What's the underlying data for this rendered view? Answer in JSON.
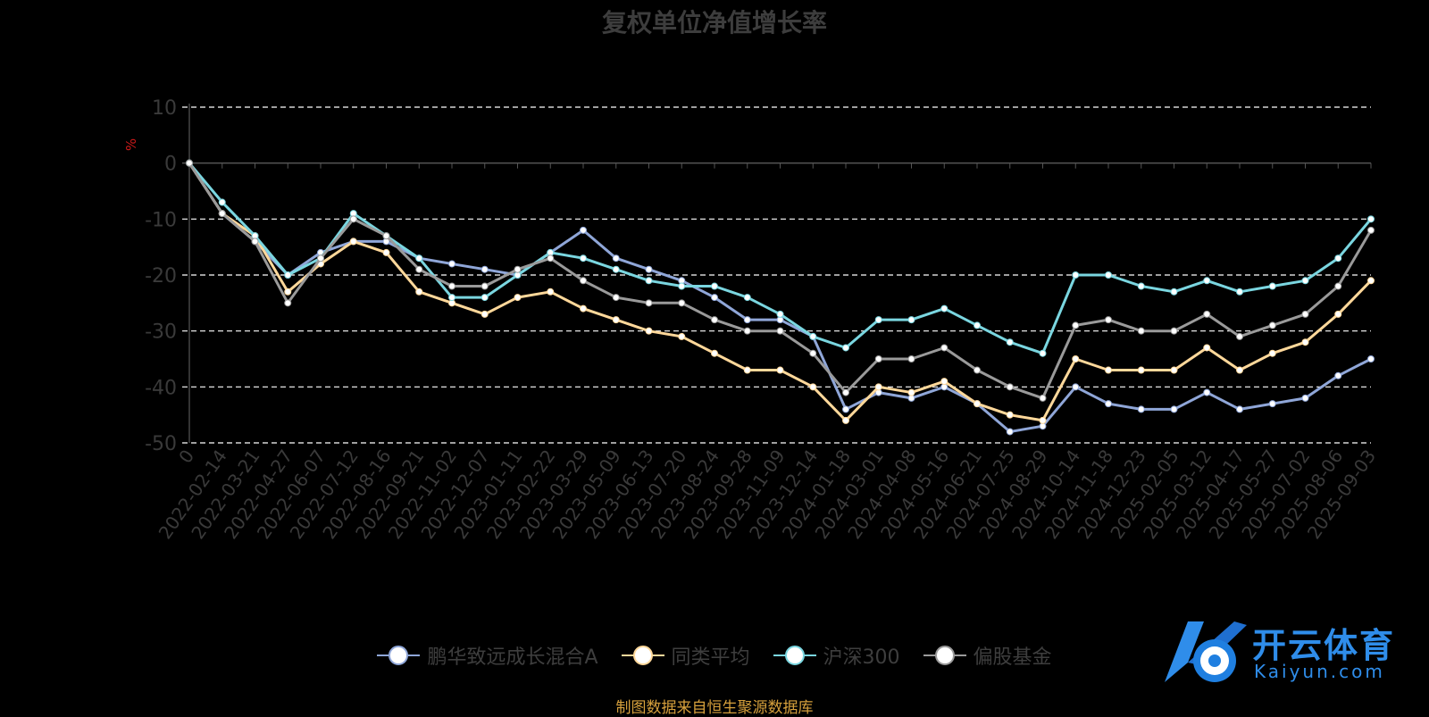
{
  "title": "复权单位净值增长率",
  "source_text": "制图数据来自恒生聚源数据库",
  "watermark": {
    "cn": "开云体育",
    "en": "Kaiyun.com"
  },
  "chart_data": {
    "type": "line",
    "title": "复权单位净值增长率",
    "ylabel": "%",
    "ylim": [
      -50,
      10
    ],
    "yticks": [
      10,
      0,
      -10,
      -20,
      -30,
      -40,
      -50
    ],
    "grid": true,
    "legend_position": "bottom",
    "x_ticks": [
      "0",
      "2022-02-14",
      "2022-03-21",
      "2022-04-27",
      "2022-06-07",
      "2022-07-12",
      "2022-08-16",
      "2022-09-21",
      "2022-11-02",
      "2022-12-07",
      "2023-01-11",
      "2023-02-22",
      "2023-03-29",
      "2023-05-09",
      "2023-06-13",
      "2023-07-20",
      "2023-08-24",
      "2023-09-28",
      "2023-11-09",
      "2023-12-14",
      "2024-01-18",
      "2024-03-01",
      "2024-04-08",
      "2024-05-16",
      "2024-06-21",
      "2024-07-25",
      "2024-08-29",
      "2024-10-14",
      "2024-11-18",
      "2024-12-23",
      "2025-02-05",
      "2025-03-12",
      "2025-04-17",
      "2025-05-27",
      "2025-07-02",
      "2025-08-06",
      "2025-09-03"
    ],
    "series": [
      {
        "name": "鹏华致远成长混合A",
        "color": "#8fa6d8",
        "values": [
          0,
          -9,
          -14,
          -20,
          -16,
          -14,
          -14,
          -17,
          -18,
          -19,
          -20,
          -16,
          -12,
          -17,
          -19,
          -21,
          -24,
          -28,
          -28,
          -31,
          -44,
          -41,
          -42,
          -40,
          -43,
          -48,
          -47,
          -40,
          -43,
          -44,
          -44,
          -41,
          -44,
          -43,
          -42,
          -38,
          -35
        ]
      },
      {
        "name": "同类平均",
        "color": "#ffd89a",
        "values": [
          0,
          -9,
          -13,
          -23,
          -18,
          -14,
          -16,
          -23,
          -25,
          -27,
          -24,
          -23,
          -26,
          -28,
          -30,
          -31,
          -34,
          -37,
          -37,
          -40,
          -46,
          -40,
          -41,
          -39,
          -43,
          -45,
          -46,
          -35,
          -37,
          -37,
          -37,
          -33,
          -37,
          -34,
          -32,
          -27,
          -21
        ]
      },
      {
        "name": "沪深300",
        "color": "#7ad6e0",
        "values": [
          0,
          -7,
          -13,
          -20,
          -17,
          -9,
          -13,
          -17,
          -24,
          -24,
          -20,
          -16,
          -17,
          -19,
          -21,
          -22,
          -22,
          -24,
          -27,
          -31,
          -33,
          -28,
          -28,
          -26,
          -29,
          -32,
          -34,
          -20,
          -20,
          -22,
          -23,
          -21,
          -23,
          -22,
          -21,
          -17,
          -10
        ]
      },
      {
        "name": "偏股基金",
        "color": "#9a9a9a",
        "values": [
          0,
          -9,
          -14,
          -25,
          -17,
          -10,
          -13,
          -19,
          -22,
          -22,
          -19,
          -17,
          -21,
          -24,
          -25,
          -25,
          -28,
          -30,
          -30,
          -34,
          -41,
          -35,
          -35,
          -33,
          -37,
          -40,
          -42,
          -29,
          -28,
          -30,
          -30,
          -27,
          -31,
          -29,
          -27,
          -22,
          -12
        ]
      }
    ]
  }
}
